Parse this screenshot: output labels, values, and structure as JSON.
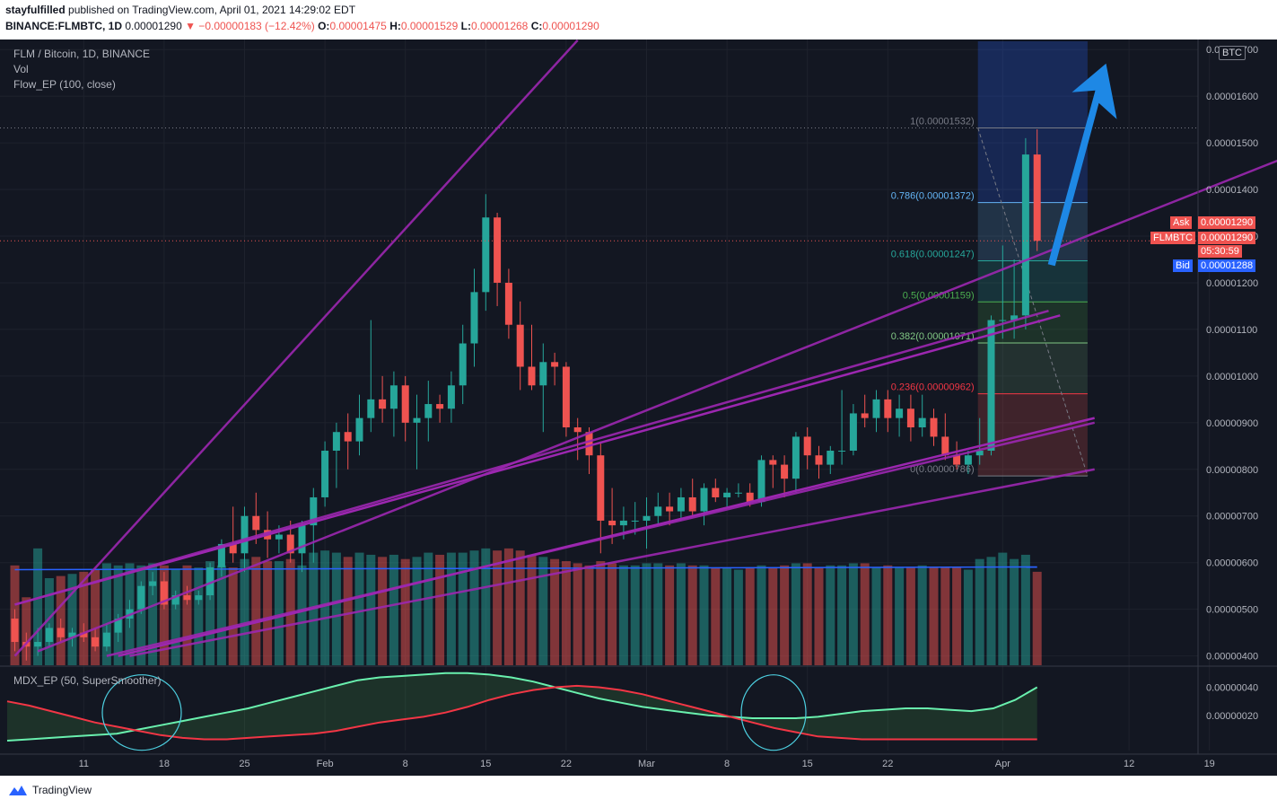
{
  "header": {
    "author": "stayfulfilled",
    "published_text": "published on TradingView.com, April 01, 2021 14:29:02 EDT",
    "symbol": "BINANCE:FLMBTC, 1D",
    "last": "0.00001290",
    "change": "▼ −0.00000183 (−12.42%)",
    "o_label": "O:",
    "o": "0.00001475",
    "h_label": "H:",
    "h": "0.00001529",
    "l_label": "L:",
    "l": "0.00001268",
    "c_label": "C:",
    "c": "0.00001290"
  },
  "legend": {
    "title": "FLM / Bitcoin, 1D, BINANCE",
    "vol": "Vol",
    "indicator": "Flow_EP (100, close)",
    "oscillator": "MDX_EP (50, SuperSmoother)"
  },
  "price_tags": {
    "currency": "BTC",
    "ask_label": "Ask",
    "ask": "0.00001290",
    "sym_label": "FLMBTC",
    "sym": "0.00001290",
    "countdown": "05:30:59",
    "bid_label": "Bid",
    "bid": "0.00001288"
  },
  "fib_labels": [
    {
      "text": "1(0.00001532)",
      "level": 1.532e-05,
      "color": "#787b86"
    },
    {
      "text": "0.786(0.00001372)",
      "level": 1.372e-05,
      "color": "#64b5f6"
    },
    {
      "text": "0.618(0.00001247)",
      "level": 1.247e-05,
      "color": "#26a69a"
    },
    {
      "text": "0.5(0.00001159)",
      "level": 1.159e-05,
      "color": "#4caf50"
    },
    {
      "text": "0.382(0.00001071)",
      "level": 1.071e-05,
      "color": "#81c784"
    },
    {
      "text": "0.236(0.00000962)",
      "level": 9.62e-06,
      "color": "#f23645"
    },
    {
      "text": "0(0.00000786)",
      "level": 7.86e-06,
      "color": "#787b86"
    }
  ],
  "footer": {
    "brand": "TradingView"
  },
  "colors": {
    "up": "#26a69a",
    "down": "#ef5350",
    "channel": "#9c27b0",
    "arrow": "#1e88e5",
    "bg": "#131722"
  },
  "chart_data": {
    "type": "candlestick",
    "y_ticks": [
      "0.00001700",
      "0.00001600",
      "0.00001500",
      "0.00001400",
      "0.00001300",
      "0.00001200",
      "0.00001100",
      "0.00001000",
      "0.00000900",
      "0.00000800",
      "0.00000700",
      "0.00000600",
      "0.00000500",
      "0.00000400"
    ],
    "y_tick_values": [
      1.7e-05,
      1.6e-05,
      1.5e-05,
      1.4e-05,
      1.3e-05,
      1.2e-05,
      1.1e-05,
      1e-05,
      9e-06,
      8e-06,
      7e-06,
      6e-06,
      5e-06,
      4e-06
    ],
    "ylim": [
      3.8e-06,
      1.71e-05
    ],
    "x_ticks": [
      "11",
      "18",
      "25",
      "Feb",
      "8",
      "15",
      "22",
      "Mar",
      "8",
      "15",
      "22",
      "Apr",
      "12",
      "19"
    ],
    "x_tick_day_index": [
      6,
      13,
      20,
      27,
      34,
      41,
      48,
      55,
      62,
      69,
      76,
      86,
      97,
      104
    ],
    "x_start": "2021-01-05",
    "osc_ticks": [
      "0.00000040",
      "0.00000020"
    ],
    "osc_tick_values": [
      4e-07,
      2e-07
    ],
    "osc_ylim": [
      -5e-08,
      5.5e-07
    ],
    "candles": [
      [
        4.8e-06,
        5e-06,
        4.1e-06,
        4.3e-06,
        0.47
      ],
      [
        4.3e-06,
        4.5e-06,
        3.9e-06,
        4.2e-06,
        0.32
      ],
      [
        4.2e-06,
        4.6e-06,
        4e-06,
        4.3e-06,
        0.55
      ],
      [
        4.3e-06,
        4.7e-06,
        4.2e-06,
        4.6e-06,
        0.41
      ],
      [
        4.6e-06,
        4.8e-06,
        4.3e-06,
        4.4e-06,
        0.42
      ],
      [
        4.4e-06,
        4.6e-06,
        4.2e-06,
        4.5e-06,
        0.43
      ],
      [
        4.5e-06,
        4.7e-06,
        4.3e-06,
        4.4e-06,
        0.44
      ],
      [
        4.4e-06,
        4.6e-06,
        4.1e-06,
        4.2e-06,
        0.45
      ],
      [
        4.2e-06,
        4.7e-06,
        4.1e-06,
        4.5e-06,
        0.48
      ],
      [
        4.5e-06,
        4.9e-06,
        4.3e-06,
        4.8e-06,
        0.47
      ],
      [
        4.8e-06,
        5.2e-06,
        4.6e-06,
        5e-06,
        0.48
      ],
      [
        5e-06,
        5.6e-06,
        4.9e-06,
        5.5e-06,
        0.47
      ],
      [
        5.5e-06,
        5.8e-06,
        5.3e-06,
        5.6e-06,
        0.48
      ],
      [
        5.6e-06,
        5.8e-06,
        5e-06,
        5.1e-06,
        0.47
      ],
      [
        5.1e-06,
        5.4e-06,
        5e-06,
        5.3e-06,
        0.45
      ],
      [
        5.3e-06,
        5.5e-06,
        5.1e-06,
        5.2e-06,
        0.47
      ],
      [
        5.2e-06,
        5.4e-06,
        5.1e-06,
        5.3e-06,
        0.46
      ],
      [
        5.3e-06,
        6e-06,
        5.2e-06,
        5.9e-06,
        0.49
      ],
      [
        5.9e-06,
        6.5e-06,
        5.7e-06,
        6.4e-06,
        0.47
      ],
      [
        6.4e-06,
        7.2e-06,
        6e-06,
        6.2e-06,
        0.46
      ],
      [
        6.2e-06,
        7.2e-06,
        5.8e-06,
        7e-06,
        0.5
      ],
      [
        7e-06,
        7.5e-06,
        6.4e-06,
        6.7e-06,
        0.51
      ],
      [
        6.7e-06,
        7.1e-06,
        6.1e-06,
        6.5e-06,
        0.49
      ],
      [
        6.5e-06,
        6.8e-06,
        6.2e-06,
        6.6e-06,
        0.49
      ],
      [
        6.6e-06,
        6.9e-06,
        6e-06,
        6.2e-06,
        0.5
      ],
      [
        6.2e-06,
        6.9e-06,
        5.8e-06,
        6.8e-06,
        0.47
      ],
      [
        6.8e-06,
        7.6e-06,
        6e-06,
        7.4e-06,
        0.53
      ],
      [
        7.4e-06,
        8.6e-06,
        7.2e-06,
        8.4e-06,
        0.54
      ],
      [
        8.4e-06,
        9e-06,
        7.6e-06,
        8.8e-06,
        0.53
      ],
      [
        8.8e-06,
        9.2e-06,
        8e-06,
        8.6e-06,
        0.51
      ],
      [
        8.6e-06,
        9.6e-06,
        8.3e-06,
        9.1e-06,
        0.53
      ],
      [
        9.1e-06,
        1.12e-05,
        8.8e-06,
        9.5e-06,
        0.52
      ],
      [
        9.5e-06,
        1e-05,
        9e-06,
        9.3e-06,
        0.51
      ],
      [
        9.3e-06,
        1.01e-05,
        8.7e-06,
        9.8e-06,
        0.52
      ],
      [
        9.8e-06,
        1e-05,
        8.6e-06,
        9e-06,
        0.5
      ],
      [
        9e-06,
        9.6e-06,
        8e-06,
        9.1e-06,
        0.51
      ],
      [
        9.1e-06,
        9.9e-06,
        8.6e-06,
        9.4e-06,
        0.53
      ],
      [
        9.4e-06,
        9.6e-06,
        9e-06,
        9.3e-06,
        0.52
      ],
      [
        9.3e-06,
        1.01e-05,
        9e-06,
        9.8e-06,
        0.53
      ],
      [
        9.8e-06,
        1.11e-05,
        9.4e-06,
        1.07e-05,
        0.53
      ],
      [
        1.07e-05,
        1.23e-05,
        1.02e-05,
        1.18e-05,
        0.54
      ],
      [
        1.18e-05,
        1.39e-05,
        1.14e-05,
        1.34e-05,
        0.55
      ],
      [
        1.34e-05,
        1.35e-05,
        1.15e-05,
        1.2e-05,
        0.54
      ],
      [
        1.2e-05,
        1.23e-05,
        1.08e-05,
        1.11e-05,
        0.55
      ],
      [
        1.11e-05,
        1.16e-05,
        9.7e-06,
        1.02e-05,
        0.54
      ],
      [
        1.02e-05,
        1.11e-05,
        9.7e-06,
        9.8e-06,
        0.52
      ],
      [
        9.8e-06,
        1.07e-05,
        8.8e-06,
        1.03e-05,
        0.51
      ],
      [
        1.03e-05,
        1.05e-05,
        9.8e-06,
        1.02e-05,
        0.5
      ],
      [
        1.02e-05,
        1.03e-05,
        8.7e-06,
        8.9e-06,
        0.49
      ],
      [
        8.9e-06,
        9.1e-06,
        8.2e-06,
        8.8e-06,
        0.48
      ],
      [
        8.8e-06,
        8.9e-06,
        7.9e-06,
        8.3e-06,
        0.47
      ],
      [
        8.3e-06,
        8.6e-06,
        6.2e-06,
        6.9e-06,
        0.49
      ],
      [
        6.9e-06,
        7.6e-06,
        6.4e-06,
        6.8e-06,
        0.48
      ],
      [
        6.8e-06,
        7.2e-06,
        6.5e-06,
        6.9e-06,
        0.47
      ],
      [
        6.9e-06,
        7.3e-06,
        6.6e-06,
        6.9e-06,
        0.47
      ],
      [
        6.9e-06,
        7.4e-06,
        6.3e-06,
        7e-06,
        0.48
      ],
      [
        7e-06,
        7.5e-06,
        6.8e-06,
        7.2e-06,
        0.48
      ],
      [
        7.2e-06,
        7.5e-06,
        6.8e-06,
        7.1e-06,
        0.47
      ],
      [
        7.1e-06,
        7.6e-06,
        6.9e-06,
        7.4e-06,
        0.48
      ],
      [
        7.4e-06,
        7.8e-06,
        7e-06,
        7.1e-06,
        0.47
      ],
      [
        7.1e-06,
        7.7e-06,
        6.8e-06,
        7.6e-06,
        0.47
      ],
      [
        7.6e-06,
        7.8e-06,
        7.3e-06,
        7.4e-06,
        0.46
      ],
      [
        7.4e-06,
        7.6e-06,
        7.2e-06,
        7.5e-06,
        0.46
      ],
      [
        7.5e-06,
        7.7e-06,
        7.4e-06,
        7.5e-06,
        0.45
      ],
      [
        7.5e-06,
        7.7e-06,
        7.2e-06,
        7.3e-06,
        0.46
      ],
      [
        7.3e-06,
        8.3e-06,
        7.2e-06,
        8.2e-06,
        0.47
      ],
      [
        8.2e-06,
        8.3e-06,
        7.6e-06,
        8.1e-06,
        0.46
      ],
      [
        8.1e-06,
        8.3e-06,
        7.4e-06,
        7.8e-06,
        0.47
      ],
      [
        7.8e-06,
        8.8e-06,
        7.5e-06,
        8.7e-06,
        0.48
      ],
      [
        8.7e-06,
        8.9e-06,
        8e-06,
        8.3e-06,
        0.48
      ],
      [
        8.3e-06,
        8.5e-06,
        7.8e-06,
        8.1e-06,
        0.46
      ],
      [
        8.1e-06,
        8.5e-06,
        7.9e-06,
        8.4e-06,
        0.47
      ],
      [
        8.4e-06,
        9.7e-06,
        8.1e-06,
        8.4e-06,
        0.47
      ],
      [
        8.4e-06,
        9.4e-06,
        8.3e-06,
        9.2e-06,
        0.48
      ],
      [
        9.2e-06,
        9.6e-06,
        8.9e-06,
        9.1e-06,
        0.48
      ],
      [
        9.1e-06,
        9.7e-06,
        8.8e-06,
        9.5e-06,
        0.46
      ],
      [
        9.5e-06,
        9.7e-06,
        8.8e-06,
        9.1e-06,
        0.47
      ],
      [
        9.1e-06,
        9.6e-06,
        8.7e-06,
        9.3e-06,
        0.46
      ],
      [
        9.3e-06,
        9.6e-06,
        8.6e-06,
        8.9e-06,
        0.46
      ],
      [
        8.9e-06,
        9.6e-06,
        8.7e-06,
        9.1e-06,
        0.47
      ],
      [
        9.1e-06,
        9.3e-06,
        8.5e-06,
        8.7e-06,
        0.46
      ],
      [
        8.7e-06,
        9.2e-06,
        8.2e-06,
        8.3e-06,
        0.46
      ],
      [
        8.3e-06,
        8.6e-06,
        8e-06,
        8.1e-06,
        0.46
      ],
      [
        8.1e-06,
        8.4e-06,
        7.9e-06,
        8.3e-06,
        0.45
      ],
      [
        8.3e-06,
        9.1e-06,
        8.1e-06,
        8.4e-06,
        0.5
      ],
      [
        8.4e-06,
        1.13e-05,
        8.3e-06,
        1.12e-05,
        0.51
      ],
      [
        1.12e-05,
        1.28e-05,
        1.08e-05,
        1.12e-05,
        0.53
      ],
      [
        1.12e-05,
        1.25e-05,
        1.08e-05,
        1.13e-05,
        0.5
      ],
      [
        1.13e-05,
        1.51e-05,
        1.1e-05,
        1.475e-05,
        0.52
      ],
      [
        1.475e-05,
        1.529e-05,
        1.268e-05,
        1.29e-05,
        0.44
      ]
    ],
    "volume_max": 0.55,
    "volume_ma": 0.45,
    "oscillator": {
      "green": [
        2e-08,
        3e-08,
        4e-08,
        5e-08,
        6e-08,
        7e-08,
        1e-07,
        1.3e-07,
        1.6e-07,
        1.9e-07,
        2.2e-07,
        2.5e-07,
        2.9e-07,
        3.3e-07,
        3.7e-07,
        4.1e-07,
        4.5e-07,
        4.7e-07,
        4.8e-07,
        4.9e-07,
        5e-07,
        5e-07,
        4.9e-07,
        4.7e-07,
        4.4e-07,
        4e-07,
        3.6e-07,
        3.2e-07,
        2.9e-07,
        2.6e-07,
        2.4e-07,
        2.2e-07,
        2e-07,
        1.9e-07,
        1.8e-07,
        1.8e-07,
        1.8e-07,
        1.9e-07,
        2.1e-07,
        2.3e-07,
        2.4e-07,
        2.5e-07,
        2.5e-07,
        2.4e-07,
        2.3e-07,
        2.5e-07,
        3.1e-07,
        4e-07
      ],
      "red": [
        3e-07,
        2.7e-07,
        2.3e-07,
        1.9e-07,
        1.5e-07,
        1.2e-07,
        9e-08,
        6e-08,
        4e-08,
        3e-08,
        3e-08,
        4e-08,
        5e-08,
        6e-08,
        7e-08,
        9e-08,
        1.2e-07,
        1.5e-07,
        1.7e-07,
        1.9e-07,
        2.2e-07,
        2.6e-07,
        3.1e-07,
        3.5e-07,
        3.8e-07,
        4e-07,
        4.1e-07,
        4e-07,
        3.8e-07,
        3.5e-07,
        3.1e-07,
        2.7e-07,
        2.3e-07,
        1.9e-07,
        1.5e-07,
        1.1e-07,
        8e-08,
        5e-08,
        4e-08,
        3e-08,
        3e-08,
        3e-08,
        3e-08,
        3e-08,
        3e-08,
        3e-08,
        3e-08,
        3e-08
      ]
    }
  }
}
